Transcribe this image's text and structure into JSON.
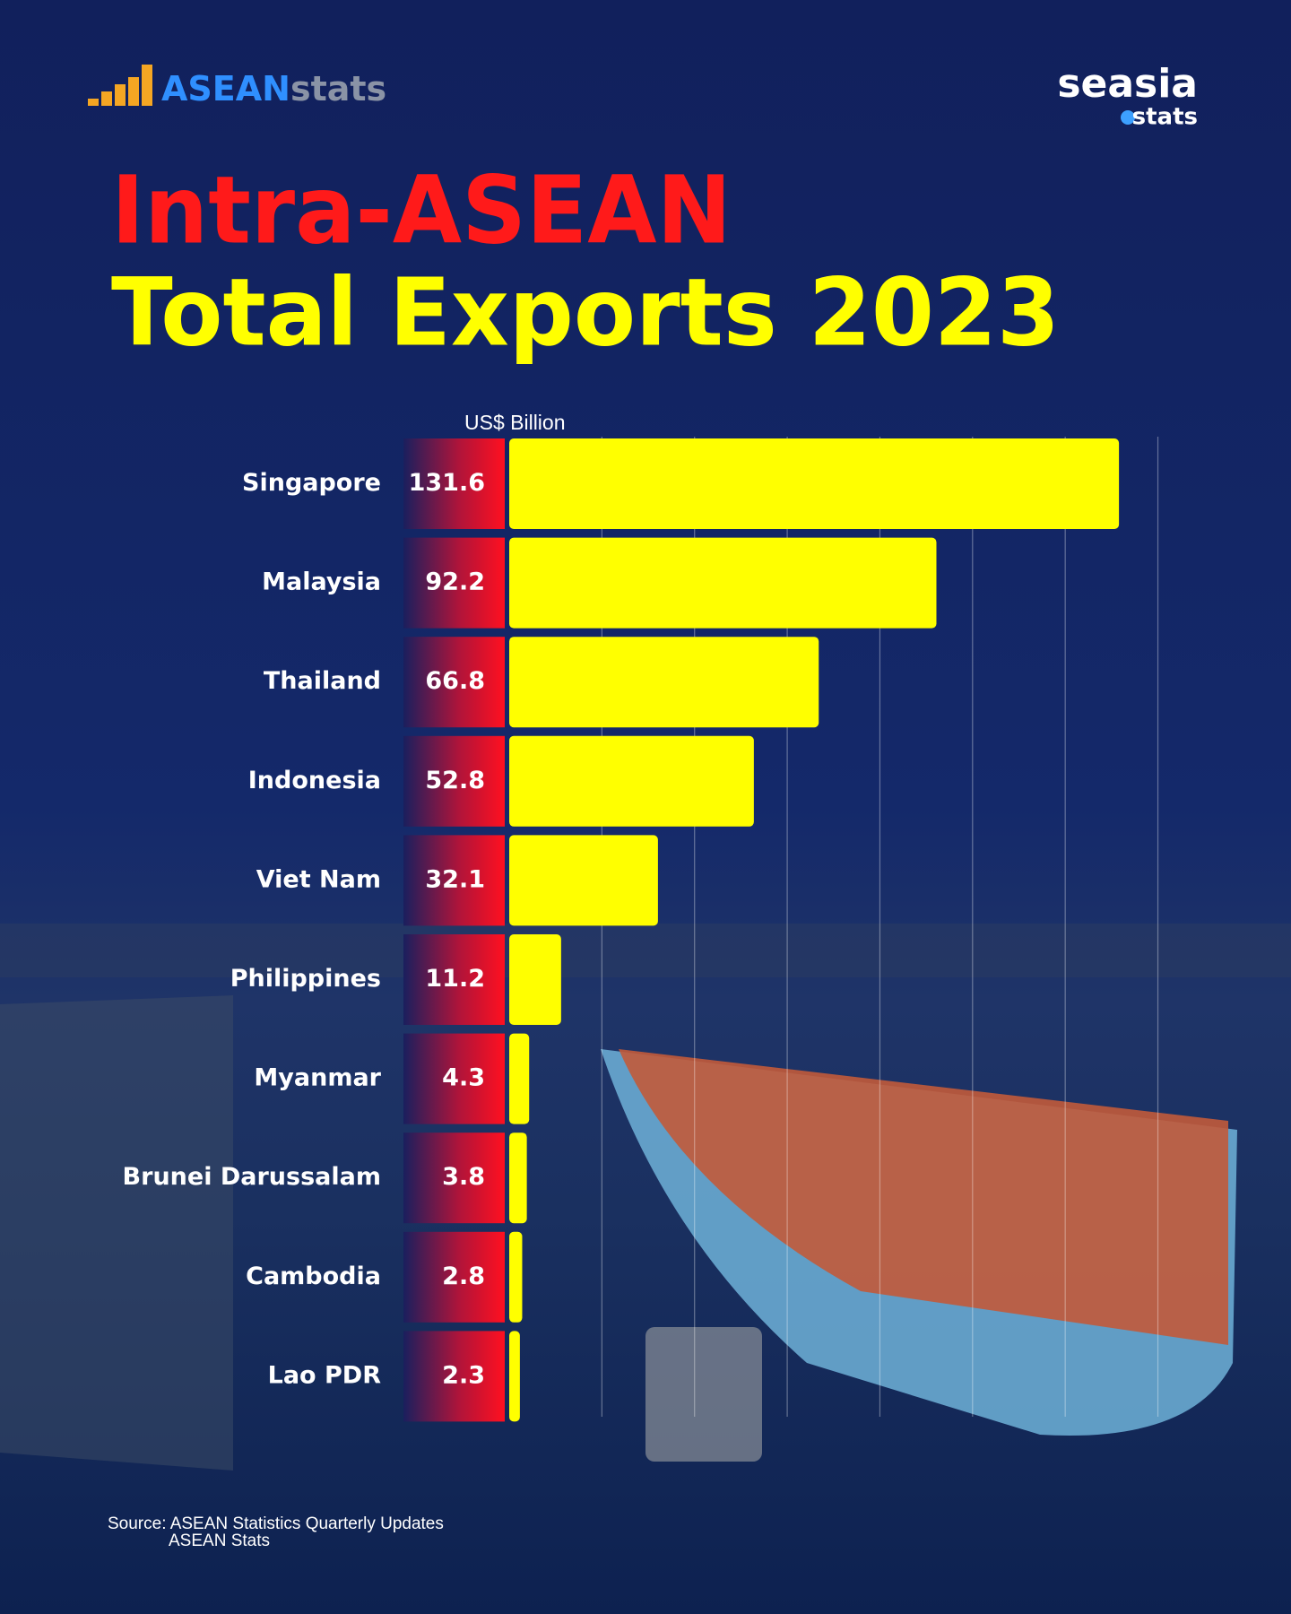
{
  "header": {
    "left_logo": [
      "ASEAN",
      "stats"
    ],
    "right_logo": [
      "seasia",
      "stats"
    ]
  },
  "chart_data": {
    "type": "bar",
    "orientation": "horizontal",
    "title": "Intra-ASEAN",
    "title_color": "#ff1a1a",
    "subtitle": "Total Exports 2023",
    "subtitle_color": "#ffff00",
    "axis_label": "US$ Billion",
    "categories": [
      "Singapore",
      "Malaysia",
      "Thailand",
      "Indonesia",
      "Viet Nam",
      "Philippines",
      "Myanmar",
      "Brunei Darussalam",
      "Cambodia",
      "Lao PDR"
    ],
    "values": [
      131.6,
      92.2,
      66.8,
      52.8,
      32.1,
      11.2,
      4.3,
      3.8,
      2.8,
      2.3
    ],
    "color": "#ffff00",
    "xlim": [
      0,
      140
    ],
    "xticks": [
      0,
      20,
      40,
      60,
      80,
      100,
      120,
      140
    ],
    "grid": true,
    "source": [
      "Source: ASEAN Statistics Quarterly Updates",
      "ASEAN Stats"
    ]
  }
}
